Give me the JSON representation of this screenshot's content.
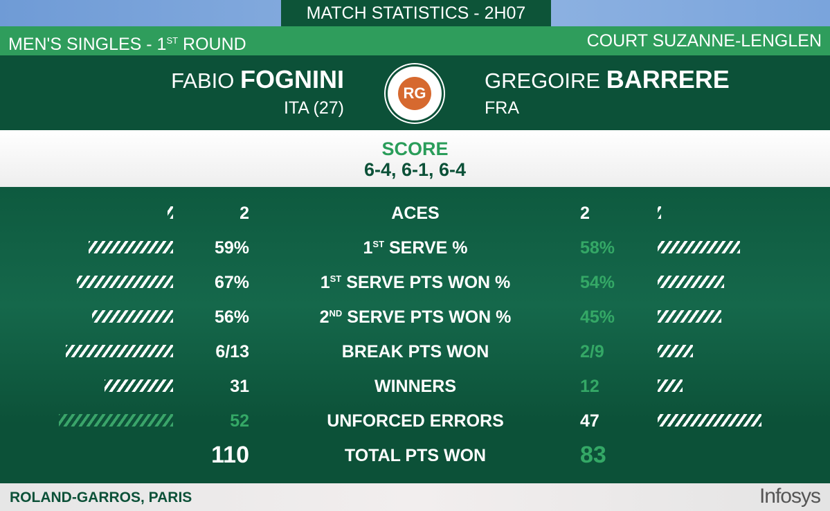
{
  "header": {
    "title": "MATCH STATISTICS - 2H07",
    "event": "MEN'S SINGLES - 1",
    "event_sup": "ST",
    "event_tail": " ROUND",
    "court": "COURT SUZANNE-LENGLEN"
  },
  "player1": {
    "first": "FABIO",
    "last": "FOGNINI",
    "country": "ITA (27)"
  },
  "player2": {
    "first": "GREGOIRE",
    "last": "BARRERE",
    "country": "FRA"
  },
  "logo": {
    "text": "ROLAND GARROS PARIS",
    "monogram": "RG"
  },
  "score": {
    "label": "SCORE",
    "value": "6-4, 6-1, 6-4"
  },
  "colors": {
    "dark_green": "#0c5138",
    "green": "#2f9d5c",
    "clay": "#d6692f"
  },
  "stats": [
    {
      "pre": "ACES",
      "sup": "",
      "post": "",
      "p1": "2",
      "p2": "2",
      "p1_bar": 0.05,
      "p2_bar": 0.03,
      "p1_lead": true,
      "p2_lead": true
    },
    {
      "pre": "1",
      "sup": "ST",
      "post": " SERVE %",
      "p1": "59%",
      "p2": "58%",
      "p1_bar": 0.74,
      "p2_bar": 0.72,
      "p1_lead": true,
      "p2_lead": false
    },
    {
      "pre": "1",
      "sup": "ST",
      "post": " SERVE PTS WON %",
      "p1": "67%",
      "p2": "54%",
      "p1_bar": 0.84,
      "p2_bar": 0.58,
      "p1_lead": true,
      "p2_lead": false
    },
    {
      "pre": "2",
      "sup": "ND",
      "post": " SERVE PTS WON %",
      "p1": "56%",
      "p2": "45%",
      "p1_bar": 0.71,
      "p2_bar": 0.56,
      "p1_lead": true,
      "p2_lead": false
    },
    {
      "pre": "BREAK PTS WON",
      "sup": "",
      "post": "",
      "p1": "6/13",
      "p2": "2/9",
      "p1_bar": 0.94,
      "p2_bar": 0.31,
      "p1_lead": true,
      "p2_lead": false
    },
    {
      "pre": "WINNERS",
      "sup": "",
      "post": "",
      "p1": "31",
      "p2": "12",
      "p1_bar": 0.6,
      "p2_bar": 0.22,
      "p1_lead": true,
      "p2_lead": false
    },
    {
      "pre": "UNFORCED ERRORS",
      "sup": "",
      "post": "",
      "p1": "52",
      "p2": "47",
      "p1_bar": 1.0,
      "p2_bar": 0.91,
      "p1_lead": false,
      "p2_lead": true
    },
    {
      "pre": "TOTAL PTS WON",
      "sup": "",
      "post": "",
      "p1": "110",
      "p2": "83",
      "p1_lead": true,
      "p2_lead": false
    }
  ],
  "footer": {
    "location": "ROLAND-GARROS, PARIS",
    "sponsor": "Infosys"
  }
}
